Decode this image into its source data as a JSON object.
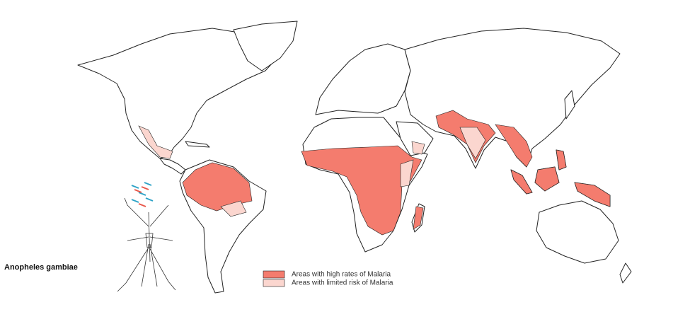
{
  "caption": "Anopheles gambiae",
  "legend": [
    {
      "label": "Areas with high rates of Malaria",
      "color": "#f47c6e"
    },
    {
      "label": "Areas with limited risk of Malaria",
      "color": "#fbd6cf"
    }
  ]
}
